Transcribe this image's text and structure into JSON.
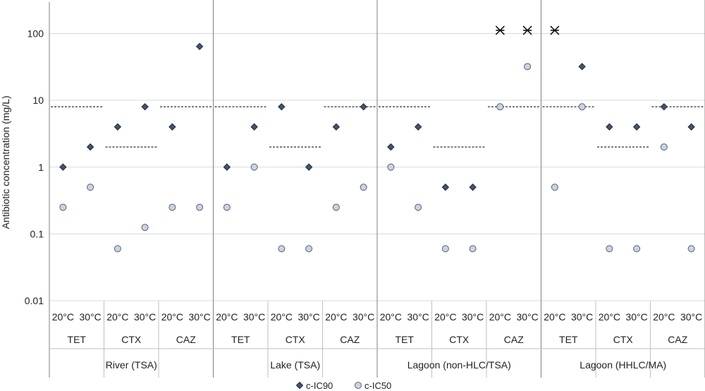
{
  "chart_data": {
    "type": "scatter",
    "title": "",
    "ylabel": "Antibiotic concentration (mg/L)",
    "yscale": "log",
    "ylim": [
      0.01,
      300
    ],
    "yticks": [
      0.01,
      0.1,
      1,
      10,
      100
    ],
    "ytick_labels": [
      "0.01",
      "0.1",
      "1",
      "10",
      "100"
    ],
    "grid": true,
    "legend_position": "bottom-center",
    "groups": [
      "River (TSA)",
      "Lake (TSA)",
      "Lagoon (non-HLC/TSA)",
      "Lagoon (HHLC/MA)"
    ],
    "antibiotics": [
      "TET",
      "CTX",
      "CAZ"
    ],
    "temperatures": [
      "20°C",
      "30°C"
    ],
    "series": [
      {
        "name": "c-IC90",
        "marker": "diamond",
        "color": "#44546A",
        "values": [
          1,
          2,
          4,
          8,
          4,
          64,
          1,
          4,
          8,
          1,
          4,
          8,
          2,
          4,
          0.5,
          0.5,
          null,
          null,
          null,
          32,
          4,
          4,
          8,
          4
        ]
      },
      {
        "name": "c-IC50",
        "marker": "circle",
        "color": "#C9D3E2",
        "values": [
          0.25,
          0.5,
          0.06,
          0.125,
          0.25,
          0.25,
          0.25,
          1,
          0.06,
          0.06,
          0.25,
          0.5,
          1,
          0.25,
          0.06,
          0.06,
          8,
          32,
          0.5,
          8,
          0.06,
          0.06,
          2,
          0.06
        ]
      }
    ],
    "off_scale_markers": {
      "symbol": "✳",
      "description": "above axis maximum",
      "positions": [
        {
          "group": "Lagoon (non-HLC/TSA)",
          "antibiotic": "CAZ",
          "temperature": "20°C"
        },
        {
          "group": "Lagoon (non-HLC/TSA)",
          "antibiotic": "CAZ",
          "temperature": "30°C"
        },
        {
          "group": "Lagoon (HHLC/MA)",
          "antibiotic": "TET",
          "temperature": "20°C"
        }
      ]
    },
    "breakpoints": {
      "style": "dashed",
      "values": [
        8,
        2,
        8,
        8,
        2,
        8,
        8,
        2,
        8,
        8,
        2,
        8
      ]
    },
    "legend": [
      {
        "label": "c-IC90",
        "marker": "diamond"
      },
      {
        "label": "c-IC50",
        "marker": "circle"
      }
    ]
  }
}
